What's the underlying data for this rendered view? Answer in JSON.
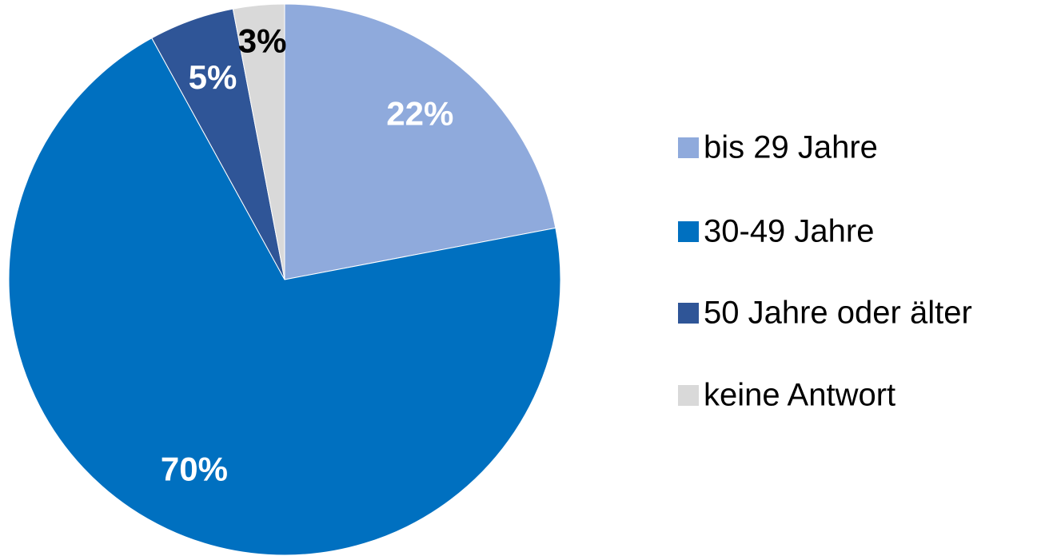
{
  "chart_data": {
    "type": "pie",
    "categories": [
      "bis 29 Jahre",
      "30-49 Jahre",
      "50 Jahre oder älter",
      "keine Antwort"
    ],
    "values": [
      22,
      70,
      5,
      3
    ],
    "value_labels": [
      "22%",
      "70%",
      "5%",
      "3%"
    ],
    "colors": [
      "#8faadc",
      "#0070c0",
      "#2f5597",
      "#d9d9d9"
    ],
    "value_label_colors": [
      "#ffffff",
      "#ffffff",
      "#ffffff",
      "#000000"
    ],
    "legend": "right"
  }
}
